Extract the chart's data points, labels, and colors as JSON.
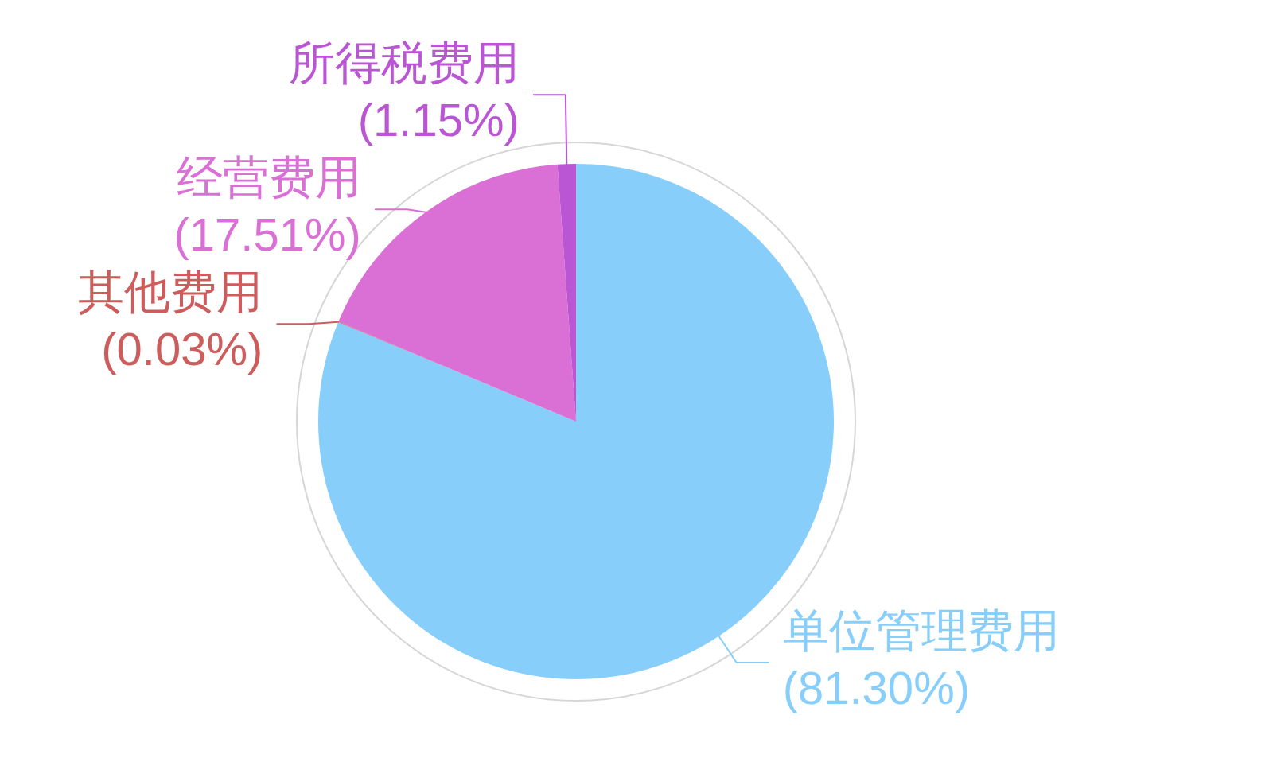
{
  "chart_data": {
    "type": "pie",
    "categories": [
      "单位管理费用",
      "其他费用",
      "经营费用",
      "所得税费用"
    ],
    "values": [
      81.3,
      0.03,
      17.51,
      1.15
    ],
    "colors": [
      "#87cefa",
      "#cd5c5c",
      "#da70d6",
      "#ba55d3"
    ],
    "value_labels": [
      "(81.30%)",
      "(0.03%)",
      "(17.51%)",
      "(1.15%)"
    ],
    "legend": false
  }
}
